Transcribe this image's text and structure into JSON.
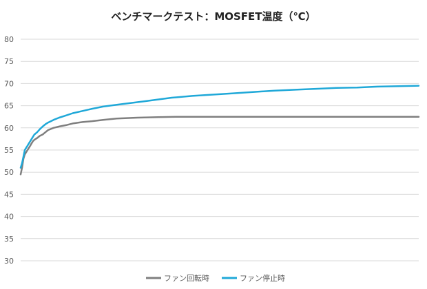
{
  "chart_data": {
    "type": "line",
    "title": "ベンチマークテスト：MOSFET温度（℃）",
    "xlabel": "",
    "ylabel": "",
    "ylim": [
      30,
      80
    ],
    "yticks": [
      "80",
      "75",
      "70",
      "65",
      "60",
      "55",
      "50",
      "45",
      "40",
      "35",
      "30"
    ],
    "grid": true,
    "legend": "bottom",
    "x_range": [
      0,
      290
    ],
    "series": [
      {
        "name": "ファン回転時",
        "color": "#7f7f7f",
        "x": [
          0,
          1,
          2,
          3,
          4,
          5,
          6,
          7,
          8,
          9,
          10,
          12,
          14,
          16,
          18,
          20,
          24,
          28,
          33,
          38,
          45,
          52,
          60,
          70,
          85,
          100,
          115,
          125,
          140,
          150,
          160,
          170,
          180,
          190,
          200,
          210,
          220,
          240,
          260,
          290
        ],
        "values": [
          49.5,
          51,
          53,
          54,
          54.5,
          55,
          55.5,
          56,
          56.5,
          57,
          57.3,
          57.7,
          58.2,
          58.5,
          59,
          59.5,
          60,
          60.3,
          60.6,
          61,
          61.3,
          61.5,
          61.8,
          62.1,
          62.3,
          62.4,
          62.5,
          62.5,
          62.5,
          62.5,
          62.5,
          62.5,
          62.5,
          62.5,
          62.5,
          62.5,
          62.5,
          62.5,
          62.5,
          62.5
        ]
      },
      {
        "name": "ファン停止時",
        "color": "#1fa8d8",
        "x": [
          0,
          1,
          2,
          3,
          4,
          5,
          6,
          7,
          8,
          9,
          10,
          12,
          14,
          16,
          18,
          20,
          24,
          28,
          33,
          38,
          45,
          52,
          60,
          70,
          80,
          90,
          100,
          110,
          125,
          140,
          155,
          170,
          185,
          200,
          215,
          230,
          245,
          260,
          275,
          290
        ],
        "values": [
          51,
          52,
          53.5,
          55,
          55.5,
          56,
          56.5,
          57,
          57.5,
          58,
          58.5,
          59,
          59.7,
          60.3,
          60.8,
          61.2,
          61.8,
          62.3,
          62.8,
          63.3,
          63.8,
          64.3,
          64.8,
          65.2,
          65.6,
          66,
          66.4,
          66.8,
          67.2,
          67.5,
          67.8,
          68.1,
          68.4,
          68.6,
          68.8,
          69,
          69.1,
          69.3,
          69.4,
          69.5
        ]
      }
    ]
  }
}
